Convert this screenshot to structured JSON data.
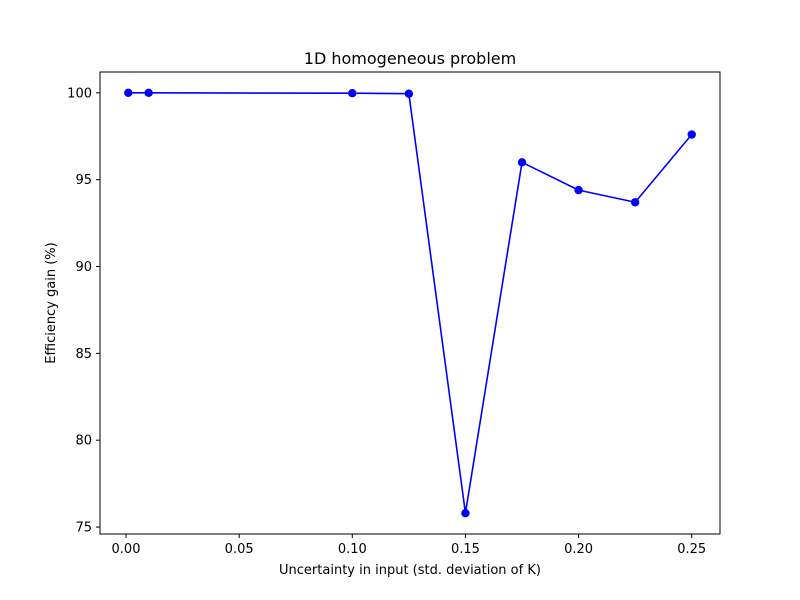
{
  "chart_data": {
    "type": "line",
    "title": "1D homogeneous problem",
    "xlabel": "Uncertainty in input (std. deviation of K)",
    "ylabel": "Efficiency gain (%)",
    "xlim": [
      -0.0115,
      0.2625
    ],
    "ylim": [
      74.6,
      101.2
    ],
    "xticks": [
      0.0,
      0.05,
      0.1,
      0.15,
      0.2,
      0.25
    ],
    "xtick_labels": [
      "0.00",
      "0.05",
      "0.10",
      "0.15",
      "0.20",
      "0.25"
    ],
    "yticks": [
      75,
      80,
      85,
      90,
      95,
      100
    ],
    "ytick_labels": [
      "75",
      "80",
      "85",
      "90",
      "95",
      "100"
    ],
    "grid": false,
    "series": [
      {
        "color": "#0000ff",
        "marker": "circle",
        "x": [
          0.001,
          0.01,
          0.1,
          0.125,
          0.15,
          0.175,
          0.2,
          0.225,
          0.25
        ],
        "y": [
          100.0,
          100.0,
          99.98,
          99.95,
          75.8,
          96.0,
          94.4,
          93.7,
          97.6
        ]
      }
    ]
  }
}
